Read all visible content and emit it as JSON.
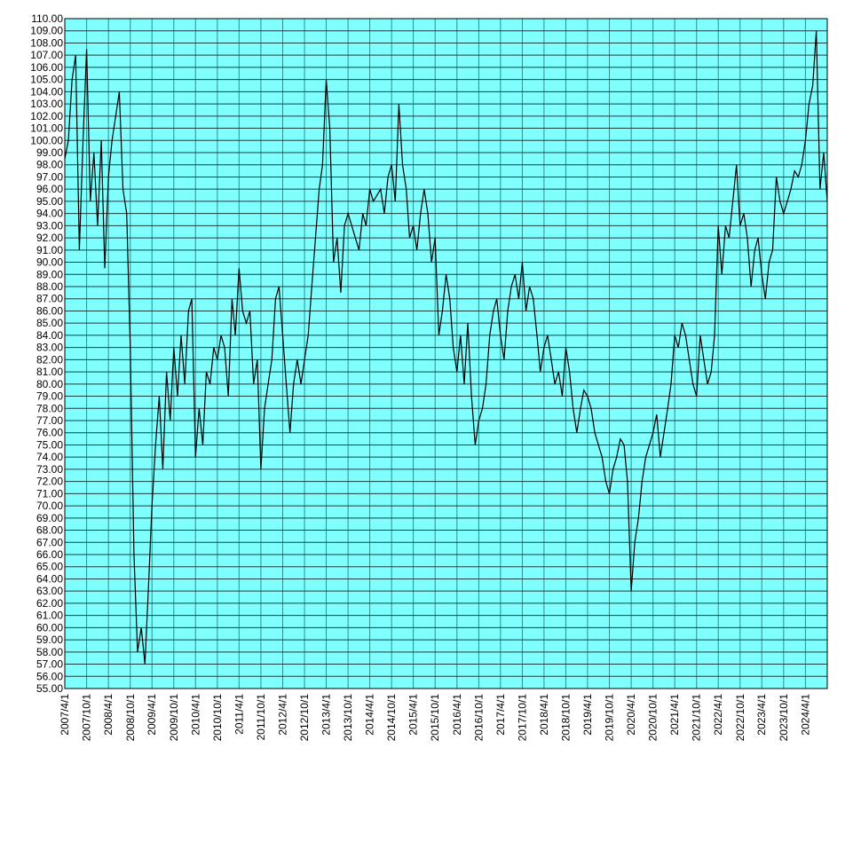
{
  "chart_data": {
    "type": "line",
    "color": "#000000",
    "background": "#80ffff",
    "grid": true,
    "xlim": [
      "2007/4/1",
      "2024/10/1"
    ],
    "xticks": [
      "2007/4/1",
      "2007/10/1",
      "2008/4/1",
      "2008/10/1",
      "2009/4/1",
      "2009/10/1",
      "2010/4/1",
      "2010/10/1",
      "2011/4/1",
      "2011/10/1",
      "2012/4/1",
      "2012/10/1",
      "2013/4/1",
      "2013/10/1",
      "2014/4/1",
      "2014/10/1",
      "2015/4/1",
      "2015/10/1",
      "2016/4/1",
      "2016/10/1",
      "2017/4/1",
      "2017/10/1",
      "2018/4/1",
      "2018/10/1",
      "2019/4/1",
      "2019/10/1",
      "2020/4/1",
      "2020/10/1",
      "2021/4/1",
      "2021/10/1",
      "2022/4/1",
      "2022/10/1",
      "2023/4/1",
      "2023/10/1",
      "2024/4/1"
    ],
    "ylim": [
      55,
      110
    ],
    "yticks": [
      {
        "value": 55,
        "label": "55.00"
      },
      {
        "value": 56,
        "label": "56.00"
      },
      {
        "value": 57,
        "label": "57.00"
      },
      {
        "value": 58,
        "label": "58.00"
      },
      {
        "value": 59,
        "label": "59.00"
      },
      {
        "value": 60,
        "label": "60.00"
      },
      {
        "value": 61,
        "label": "61.00"
      },
      {
        "value": 62,
        "label": "62.00"
      },
      {
        "value": 63,
        "label": "63.00"
      },
      {
        "value": 64,
        "label": "64.00"
      },
      {
        "value": 65,
        "label": "65.00"
      },
      {
        "value": 66,
        "label": "66.00"
      },
      {
        "value": 67,
        "label": "67.00"
      },
      {
        "value": 68,
        "label": "68.00"
      },
      {
        "value": 69,
        "label": "69.00"
      },
      {
        "value": 70,
        "label": "70.00"
      },
      {
        "value": 71,
        "label": "71.00"
      },
      {
        "value": 72,
        "label": "72.00"
      },
      {
        "value": 73,
        "label": "73.00"
      },
      {
        "value": 74,
        "label": "74.00"
      },
      {
        "value": 75,
        "label": "75.00"
      },
      {
        "value": 76,
        "label": "76.00"
      },
      {
        "value": 77,
        "label": "77.00"
      },
      {
        "value": 78,
        "label": "78.00"
      },
      {
        "value": 79,
        "label": "79.00"
      },
      {
        "value": 80,
        "label": "80.00"
      },
      {
        "value": 81,
        "label": "81.00"
      },
      {
        "value": 82,
        "label": "82.00"
      },
      {
        "value": 83,
        "label": "83.00"
      },
      {
        "value": 84,
        "label": "84.00"
      },
      {
        "value": 85,
        "label": "85.00"
      },
      {
        "value": 86,
        "label": "86.00"
      },
      {
        "value": 87,
        "label": "87.00"
      },
      {
        "value": 88,
        "label": "88.00"
      },
      {
        "value": 89,
        "label": "89.00"
      },
      {
        "value": 90,
        "label": "90.00"
      },
      {
        "value": 91,
        "label": "91.00"
      },
      {
        "value": 92,
        "label": "92.00"
      },
      {
        "value": 93,
        "label": "93.00"
      },
      {
        "value": 94,
        "label": "94.00"
      },
      {
        "value": 95,
        "label": "95.00"
      },
      {
        "value": 96,
        "label": "96.00"
      },
      {
        "value": 97,
        "label": "97.00"
      },
      {
        "value": 98,
        "label": "98.00"
      },
      {
        "value": 99,
        "label": "99.00"
      },
      {
        "value": 100,
        "label": "100.00"
      },
      {
        "value": 101,
        "label": "101.00"
      },
      {
        "value": 102,
        "label": "102.00"
      },
      {
        "value": 103,
        "label": "103.00"
      },
      {
        "value": 104,
        "label": "104.00"
      },
      {
        "value": 105,
        "label": "105.00"
      },
      {
        "value": 106,
        "label": "106.00"
      },
      {
        "value": 107,
        "label": "107.00"
      },
      {
        "value": 108,
        "label": "108.00"
      },
      {
        "value": 109,
        "label": "109.00"
      },
      {
        "value": 110,
        "label": "110.00"
      }
    ],
    "x": [
      "2007/4/1",
      "2007/5/1",
      "2007/6/1",
      "2007/7/1",
      "2007/8/1",
      "2007/9/1",
      "2007/10/1",
      "2007/11/1",
      "2007/12/1",
      "2008/1/1",
      "2008/2/1",
      "2008/3/1",
      "2008/4/1",
      "2008/5/1",
      "2008/6/1",
      "2008/7/1",
      "2008/8/1",
      "2008/9/1",
      "2008/10/1",
      "2008/11/1",
      "2008/12/1",
      "2009/1/1",
      "2009/2/1",
      "2009/3/1",
      "2009/4/1",
      "2009/5/1",
      "2009/6/1",
      "2009/7/1",
      "2009/8/1",
      "2009/9/1",
      "2009/10/1",
      "2009/11/1",
      "2009/12/1",
      "2010/1/1",
      "2010/2/1",
      "2010/3/1",
      "2010/4/1",
      "2010/5/1",
      "2010/6/1",
      "2010/7/1",
      "2010/8/1",
      "2010/9/1",
      "2010/10/1",
      "2010/11/1",
      "2010/12/1",
      "2011/1/1",
      "2011/2/1",
      "2011/3/1",
      "2011/4/1",
      "2011/5/1",
      "2011/6/1",
      "2011/7/1",
      "2011/8/1",
      "2011/9/1",
      "2011/10/1",
      "2011/11/1",
      "2011/12/1",
      "2012/1/1",
      "2012/2/1",
      "2012/3/1",
      "2012/4/1",
      "2012/5/1",
      "2012/6/1",
      "2012/7/1",
      "2012/8/1",
      "2012/9/1",
      "2012/10/1",
      "2012/11/1",
      "2012/12/1",
      "2013/1/1",
      "2013/2/1",
      "2013/3/1",
      "2013/4/1",
      "2013/5/1",
      "2013/6/1",
      "2013/7/1",
      "2013/8/1",
      "2013/9/1",
      "2013/10/1",
      "2013/11/1",
      "2013/12/1",
      "2014/1/1",
      "2014/2/1",
      "2014/3/1",
      "2014/4/1",
      "2014/5/1",
      "2014/6/1",
      "2014/7/1",
      "2014/8/1",
      "2014/9/1",
      "2014/10/1",
      "2014/11/1",
      "2014/12/1",
      "2015/1/1",
      "2015/2/1",
      "2015/3/1",
      "2015/4/1",
      "2015/5/1",
      "2015/6/1",
      "2015/7/1",
      "2015/8/1",
      "2015/9/1",
      "2015/10/1",
      "2015/11/1",
      "2015/12/1",
      "2016/1/1",
      "2016/2/1",
      "2016/3/1",
      "2016/4/1",
      "2016/5/1",
      "2016/6/1",
      "2016/7/1",
      "2016/8/1",
      "2016/9/1",
      "2016/10/1",
      "2016/11/1",
      "2016/12/1",
      "2017/1/1",
      "2017/2/1",
      "2017/3/1",
      "2017/4/1",
      "2017/5/1",
      "2017/6/1",
      "2017/7/1",
      "2017/8/1",
      "2017/9/1",
      "2017/10/1",
      "2017/11/1",
      "2017/12/1",
      "2018/1/1",
      "2018/2/1",
      "2018/3/1",
      "2018/4/1",
      "2018/5/1",
      "2018/6/1",
      "2018/7/1",
      "2018/8/1",
      "2018/9/1",
      "2018/10/1",
      "2018/11/1",
      "2018/12/1",
      "2019/1/1",
      "2019/2/1",
      "2019/3/1",
      "2019/4/1",
      "2019/5/1",
      "2019/6/1",
      "2019/7/1",
      "2019/8/1",
      "2019/9/1",
      "2019/10/1",
      "2019/11/1",
      "2019/12/1",
      "2020/1/1",
      "2020/2/1",
      "2020/3/1",
      "2020/4/1",
      "2020/5/1",
      "2020/6/1",
      "2020/7/1",
      "2020/8/1",
      "2020/9/1",
      "2020/10/1",
      "2020/11/1",
      "2020/12/1",
      "2021/1/1",
      "2021/2/1",
      "2021/3/1",
      "2021/4/1",
      "2021/5/1",
      "2021/6/1",
      "2021/7/1",
      "2021/8/1",
      "2021/9/1",
      "2021/10/1",
      "2021/11/1",
      "2021/12/1",
      "2022/1/1",
      "2022/2/1",
      "2022/3/1",
      "2022/4/1",
      "2022/5/1",
      "2022/6/1",
      "2022/7/1",
      "2022/8/1",
      "2022/9/1",
      "2022/10/1",
      "2022/11/1",
      "2022/12/1",
      "2023/1/1",
      "2023/2/1",
      "2023/3/1",
      "2023/4/1",
      "2023/5/1",
      "2023/6/1",
      "2023/7/1",
      "2023/8/1",
      "2023/9/1",
      "2023/10/1",
      "2023/11/1",
      "2023/12/1",
      "2024/1/1",
      "2024/2/1",
      "2024/3/1",
      "2024/4/1",
      "2024/5/1",
      "2024/6/1",
      "2024/7/1",
      "2024/8/1",
      "2024/9/1",
      "2024/10/1"
    ],
    "values": [
      98.5,
      100,
      105,
      107,
      91,
      100,
      107.5,
      95,
      99,
      93,
      100,
      89.5,
      97,
      100,
      102,
      104,
      96,
      94,
      83,
      66,
      58,
      60,
      57,
      63,
      70,
      75,
      79,
      73,
      81,
      77,
      83,
      79,
      84,
      80,
      86,
      87,
      74,
      78,
      75,
      81,
      80,
      83,
      82,
      84,
      83,
      79,
      87,
      84,
      89.5,
      86,
      85,
      86,
      80,
      82,
      73,
      78,
      80,
      82,
      87,
      88,
      84,
      80,
      76,
      80,
      82,
      80,
      82,
      84,
      88,
      92,
      96,
      98,
      105,
      101,
      90,
      92,
      87.5,
      93,
      94,
      93,
      92,
      91,
      94,
      93,
      96,
      95,
      95.5,
      96,
      94,
      97,
      98,
      95,
      103,
      98,
      96,
      92,
      93,
      91,
      94,
      96,
      94,
      90,
      92,
      84,
      86,
      89,
      87,
      83,
      81,
      84,
      80,
      85,
      79,
      75,
      77,
      78,
      80,
      84,
      86,
      87,
      84,
      82,
      86,
      88,
      89,
      87,
      90,
      86,
      88,
      87,
      84,
      81,
      83,
      84,
      82,
      80,
      81,
      79,
      83,
      81,
      78,
      76,
      78,
      79.5,
      79,
      78,
      76,
      75,
      74,
      72,
      71,
      73,
      74,
      75.5,
      75,
      72,
      63,
      67,
      69,
      72,
      74,
      75,
      76,
      77.5,
      74,
      76,
      78,
      80,
      84,
      83,
      85,
      84,
      82,
      80,
      79,
      84,
      82,
      80,
      81,
      84,
      93,
      89,
      93,
      92,
      95,
      98,
      93,
      94,
      92,
      88,
      91,
      92,
      89,
      87,
      90,
      91,
      97,
      95,
      94,
      95,
      96,
      97.5,
      97,
      98,
      100,
      103,
      104.5,
      109,
      96,
      99,
      95
    ]
  }
}
